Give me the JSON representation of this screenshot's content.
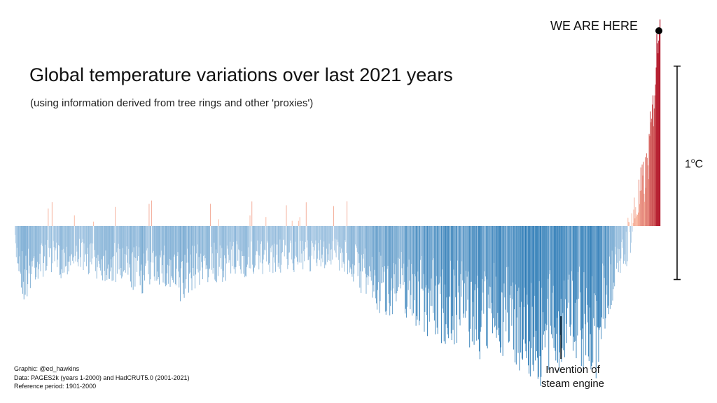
{
  "chart_data": {
    "type": "bar",
    "title": "Global temperature variations over last 2021 years",
    "subtitle": "(using information derived from tree rings and other 'proxies')",
    "x_range": [
      1,
      2021
    ],
    "baseline_anomaly_c": 0,
    "scale_bar": {
      "label": "1",
      "unit_suffix": "C",
      "value_c": 1.0
    },
    "current_marker": {
      "label": "WE ARE HERE",
      "year": 2021
    },
    "annotation": {
      "year": 1712,
      "lines": [
        "Invention of",
        "steam engine"
      ]
    },
    "credits": [
      "Graphic: @ed_hawkins",
      "Data: PAGES2k (years 1-2000) and HadCRUT5.0 (2001-2021)",
      "Reference period: 1901-2000"
    ],
    "colors": {
      "cold": "#2c7bb6",
      "cold_light": "#c6dbef",
      "warm": "#b2182b",
      "warm_light": "#fcbba1",
      "marker": "#000000"
    },
    "envelope_keyframes": [
      [
        1,
        -0.12
      ],
      [
        30,
        -0.3
      ],
      [
        60,
        -0.22
      ],
      [
        100,
        -0.18
      ],
      [
        140,
        -0.2
      ],
      [
        200,
        -0.16
      ],
      [
        250,
        -0.2
      ],
      [
        300,
        -0.22
      ],
      [
        350,
        -0.24
      ],
      [
        400,
        -0.26
      ],
      [
        450,
        -0.22
      ],
      [
        520,
        -0.32
      ],
      [
        560,
        -0.24
      ],
      [
        600,
        -0.22
      ],
      [
        700,
        -0.2
      ],
      [
        800,
        -0.18
      ],
      [
        900,
        -0.18
      ],
      [
        1000,
        -0.16
      ],
      [
        1050,
        -0.2
      ],
      [
        1100,
        -0.28
      ],
      [
        1150,
        -0.36
      ],
      [
        1200,
        -0.32
      ],
      [
        1250,
        -0.38
      ],
      [
        1300,
        -0.42
      ],
      [
        1350,
        -0.46
      ],
      [
        1400,
        -0.44
      ],
      [
        1450,
        -0.52
      ],
      [
        1500,
        -0.48
      ],
      [
        1550,
        -0.5
      ],
      [
        1600,
        -0.58
      ],
      [
        1650,
        -0.62
      ],
      [
        1700,
        -0.56
      ],
      [
        1750,
        -0.5
      ],
      [
        1800,
        -0.6
      ],
      [
        1820,
        -0.62
      ],
      [
        1850,
        -0.4
      ],
      [
        1900,
        -0.18
      ],
      [
        1940,
        0.05
      ],
      [
        1980,
        0.25
      ],
      [
        2000,
        0.55
      ],
      [
        2021,
        1.05
      ]
    ]
  }
}
